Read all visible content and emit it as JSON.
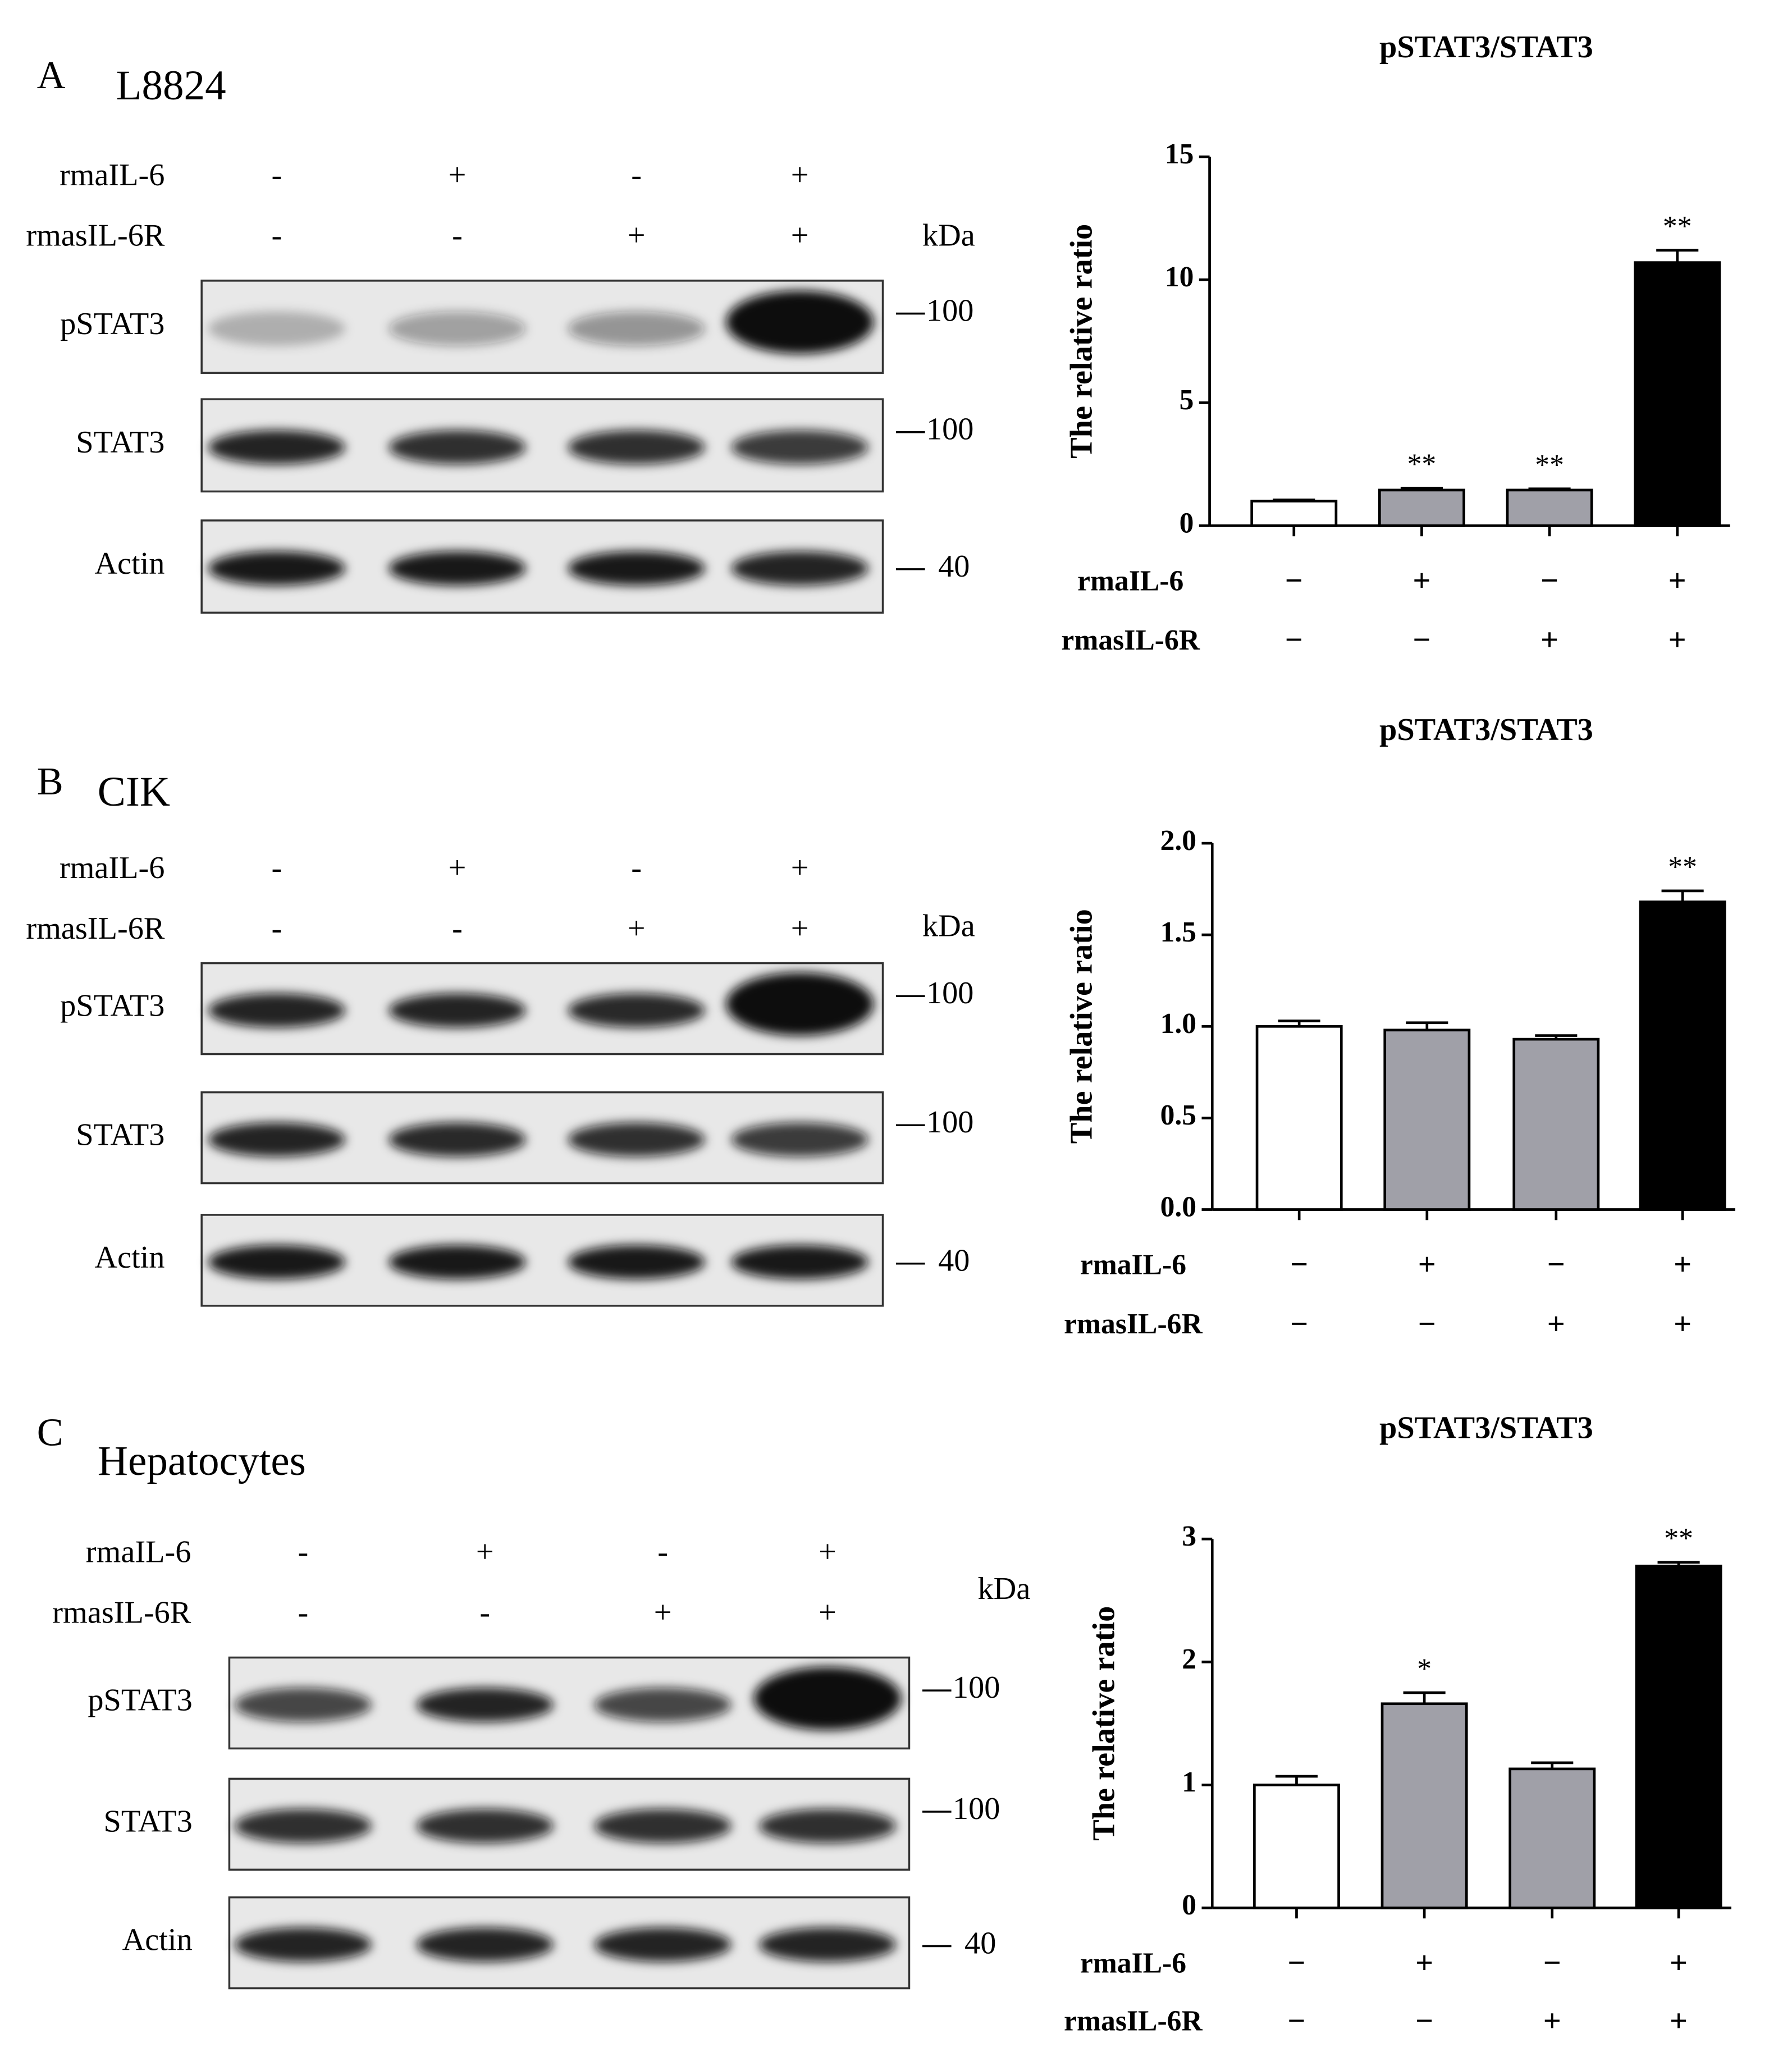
{
  "panels": [
    {
      "letter": "A",
      "cell": "L8824",
      "treatments": [
        {
          "name": "rmaIL-6",
          "signs": [
            "-",
            "+",
            "-",
            "+"
          ]
        },
        {
          "name": "rmasIL-6R",
          "signs": [
            "-",
            "-",
            "+",
            "+"
          ]
        }
      ],
      "unit": "kDa",
      "blots": [
        {
          "name": "pSTAT3",
          "marker": 100
        },
        {
          "name": "STAT3",
          "marker": 100
        },
        {
          "name": "Actin",
          "marker": 40
        }
      ]
    },
    {
      "letter": "B",
      "cell": "CIK",
      "treatments": [
        {
          "name": "rmaIL-6",
          "signs": [
            "-",
            "+",
            "-",
            "+"
          ]
        },
        {
          "name": "rmasIL-6R",
          "signs": [
            "-",
            "-",
            "+",
            "+"
          ]
        }
      ],
      "unit": "kDa",
      "blots": [
        {
          "name": "pSTAT3",
          "marker": 100
        },
        {
          "name": "STAT3",
          "marker": 100
        },
        {
          "name": "Actin",
          "marker": 40
        }
      ]
    },
    {
      "letter": "C",
      "cell": "Hepatocytes",
      "treatments": [
        {
          "name": "rmaIL-6",
          "signs": [
            "-",
            "+",
            "-",
            "+"
          ]
        },
        {
          "name": "rmasIL-6R",
          "signs": [
            "-",
            "-",
            "+",
            "+"
          ]
        }
      ],
      "unit": "kDa",
      "blots": [
        {
          "name": "pSTAT3",
          "marker": 100
        },
        {
          "name": "STAT3",
          "marker": 100
        },
        {
          "name": "Actin",
          "marker": 40
        }
      ]
    }
  ],
  "chart_data": [
    {
      "type": "bar",
      "title": "pSTAT3/STAT3",
      "y_label": "The  relative ratio",
      "treatments": [
        {
          "name": "rmaIL-6",
          "signs": [
            "−",
            "+",
            "−",
            "+"
          ]
        },
        {
          "name": "rmasIL-6R",
          "signs": [
            "−",
            "−",
            "+",
            "+"
          ]
        }
      ],
      "values": [
        1.0,
        1.45,
        1.45,
        10.7
      ],
      "errors": [
        0.05,
        0.08,
        0.05,
        0.5
      ],
      "annotations": [
        null,
        "**",
        "**",
        "**"
      ],
      "colors": [
        "#ffffff",
        "#a0a0a8",
        "#a0a0a8",
        "#000000"
      ],
      "ylim": [
        0,
        15
      ],
      "yticks": [
        0,
        5,
        10,
        15
      ]
    },
    {
      "type": "bar",
      "title": "pSTAT3/STAT3",
      "y_label": "The  relative ratio",
      "treatments": [
        {
          "name": "rmaIL-6",
          "signs": [
            "−",
            "+",
            "−",
            "+"
          ]
        },
        {
          "name": "rmasIL-6R",
          "signs": [
            "−",
            "−",
            "+",
            "+"
          ]
        }
      ],
      "values": [
        1.0,
        0.98,
        0.93,
        1.68
      ],
      "errors": [
        0.03,
        0.04,
        0.02,
        0.06
      ],
      "annotations": [
        null,
        null,
        null,
        "**"
      ],
      "colors": [
        "#ffffff",
        "#a0a0a8",
        "#a0a0a8",
        "#000000"
      ],
      "ylim": [
        0,
        2
      ],
      "yticks": [
        {
          "value": 0,
          "label": "0.0"
        },
        0.5,
        {
          "value": 1,
          "label": "1.0"
        },
        1.5,
        {
          "value": 2,
          "label": "2.0"
        }
      ]
    },
    {
      "type": "bar",
      "title": "pSTAT3/STAT3",
      "y_label": "The  relative ratio",
      "treatments": [
        {
          "name": "rmaIL-6",
          "signs": [
            "−",
            "+",
            "−",
            "+"
          ]
        },
        {
          "name": "rmasIL-6R",
          "signs": [
            "−",
            "−",
            "+",
            "+"
          ]
        }
      ],
      "values": [
        1.0,
        1.66,
        1.13,
        2.78
      ],
      "errors": [
        0.07,
        0.09,
        0.05,
        0.03
      ],
      "annotations": [
        null,
        "*",
        null,
        "**"
      ],
      "colors": [
        "#ffffff",
        "#a0a0a8",
        "#a0a0a8",
        "#000000"
      ],
      "ylim": [
        0,
        3
      ],
      "yticks": [
        0,
        1,
        2,
        3
      ]
    }
  ]
}
